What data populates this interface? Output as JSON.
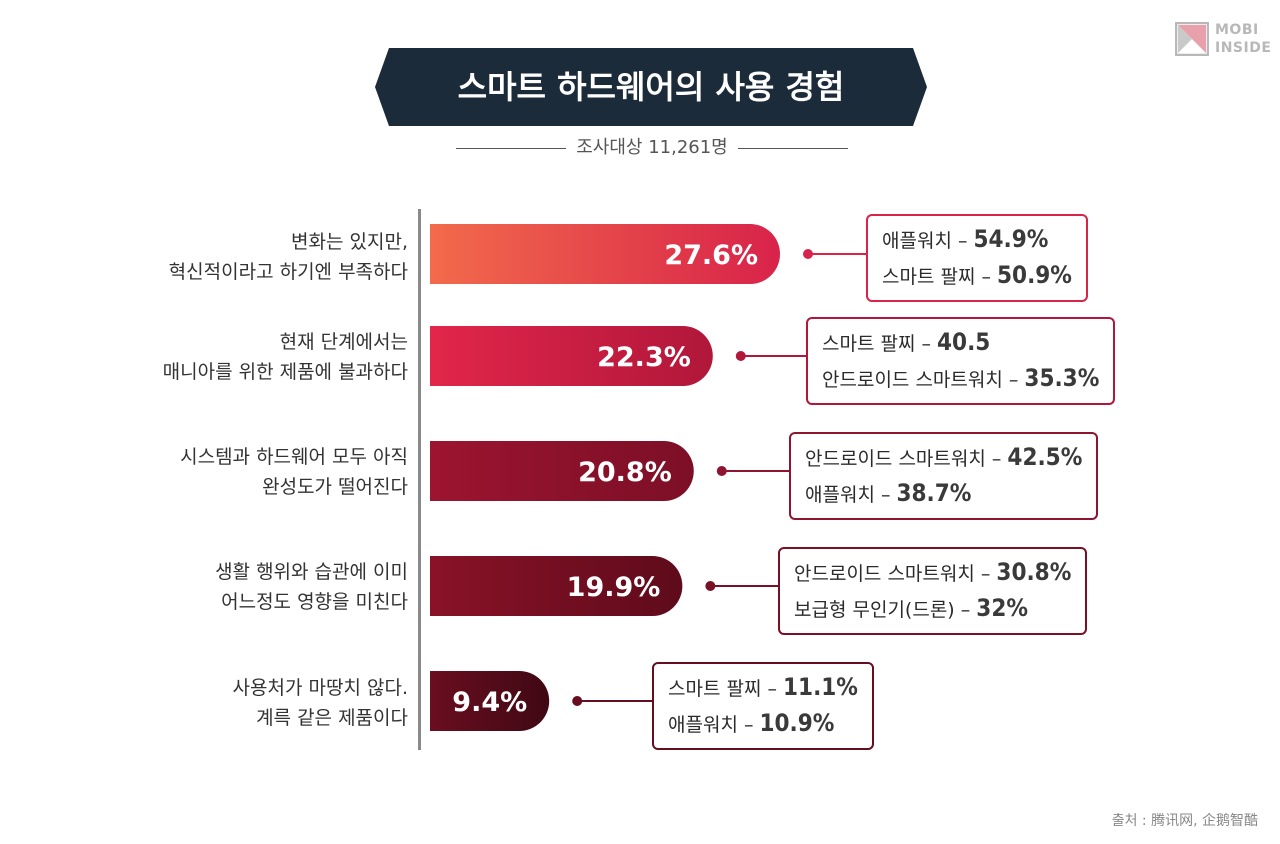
{
  "logo": {
    "line1": "MOBI",
    "line2": "INSIDE"
  },
  "title": "스마트 하드웨어의 사용 경험",
  "subtitle": "조사대상 11,261명",
  "source": "출처 : 腾讯网, 企鹅智酷",
  "colors": {
    "banner": "#1c2b3a",
    "bars": [
      [
        "#f26a4b",
        "#d8234a"
      ],
      [
        "#e2264a",
        "#b0173a"
      ],
      [
        "#9c1430",
        "#7c0f26"
      ],
      [
        "#8a1228",
        "#5e0b1b"
      ],
      [
        "#6a0e20",
        "#3f0813"
      ]
    ],
    "boxes": [
      "#d8234a",
      "#b0173a",
      "#8e1430",
      "#7a1026",
      "#660d20"
    ]
  },
  "chart_data": {
    "type": "bar",
    "orientation": "horizontal",
    "title": "스마트 하드웨어의 사용 경험",
    "subtitle": "조사대상 11,261명",
    "unit": "%",
    "categories": [
      [
        "변화는 있지만,",
        "혁신적이라고 하기엔 부족하다"
      ],
      [
        "현재 단계에서는",
        "매니아를 위한 제품에 불과하다"
      ],
      [
        "시스템과 하드웨어 모두 아직",
        "완성도가 떨어진다"
      ],
      [
        "생활 행위와 습관에 이미",
        "어느정도 영향을 미친다"
      ],
      [
        "사용처가 마땅치 않다.",
        "계륵 같은 제품이다"
      ]
    ],
    "values": [
      27.6,
      22.3,
      20.8,
      19.9,
      9.4
    ],
    "labels": [
      "27.6%",
      "22.3%",
      "20.8%",
      "19.9%",
      "9.4%"
    ],
    "xlim": [
      0,
      27.6
    ],
    "details": [
      [
        {
          "name": "애플워치 – ",
          "value": "54.9%"
        },
        {
          "name": "스마트 팔찌 – ",
          "value": "50.9%"
        }
      ],
      [
        {
          "name": "스마트 팔찌 – ",
          "value": "40.5"
        },
        {
          "name": "안드로이드 스마트워치 – ",
          "value": "35.3%"
        }
      ],
      [
        {
          "name": "안드로이드 스마트워치 – ",
          "value": "42.5%"
        },
        {
          "name": "애플워치 – ",
          "value": "38.7%"
        }
      ],
      [
        {
          "name": "안드로이드 스마트워치 – ",
          "value": "30.8%"
        },
        {
          "name": "보급형 무인기(드론) – ",
          "value": "32%"
        }
      ],
      [
        {
          "name": "스마트 팔찌 – ",
          "value": "11.1%"
        },
        {
          "name": "애플워치 – ",
          "value": "10.9%"
        }
      ]
    ]
  }
}
